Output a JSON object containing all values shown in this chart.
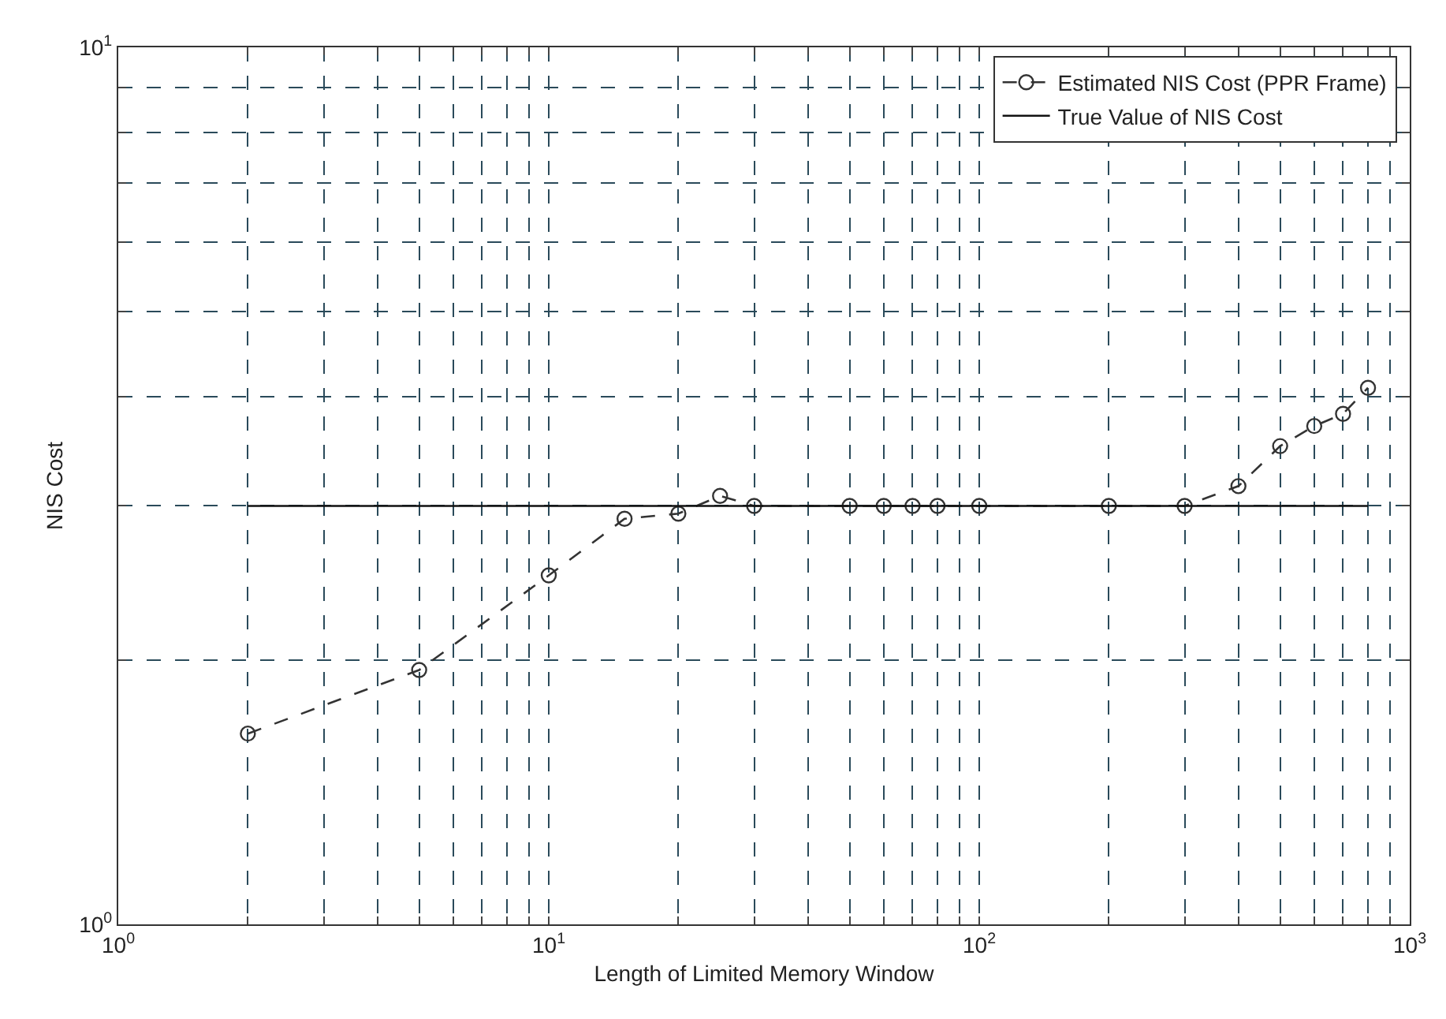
{
  "chart_data": {
    "type": "line",
    "xlabel": "Length of Limited Memory Window",
    "ylabel": "NIS Cost",
    "log": "xy",
    "grid": true,
    "legend": "top right",
    "xlim": [
      1,
      1000
    ],
    "ylim": [
      1,
      10
    ],
    "xticks": [
      {
        "value": 1,
        "label": "10$^{0}$"
      },
      {
        "value": 2,
        "label": null
      },
      {
        "value": 3,
        "label": null
      },
      {
        "value": 4,
        "label": null
      },
      {
        "value": 5,
        "label": null
      },
      {
        "value": 6,
        "label": null
      },
      {
        "value": 7,
        "label": null
      },
      {
        "value": 8,
        "label": null
      },
      {
        "value": 9,
        "label": null
      },
      {
        "value": 10,
        "label": "10$^{1}$"
      },
      {
        "value": 20,
        "label": null
      },
      {
        "value": 30,
        "label": null
      },
      {
        "value": 40,
        "label": null
      },
      {
        "value": 50,
        "label": null
      },
      {
        "value": 60,
        "label": null
      },
      {
        "value": 70,
        "label": null
      },
      {
        "value": 80,
        "label": null
      },
      {
        "value": 90,
        "label": null
      },
      {
        "value": 100,
        "label": "10$^{2}$"
      },
      {
        "value": 200,
        "label": null
      },
      {
        "value": 300,
        "label": null
      },
      {
        "value": 400,
        "label": null
      },
      {
        "value": 500,
        "label": null
      },
      {
        "value": 600,
        "label": null
      },
      {
        "value": 700,
        "label": null
      },
      {
        "value": 800,
        "label": null
      },
      {
        "value": 900,
        "label": null
      },
      {
        "value": 1000,
        "label": "10$^{3}$"
      }
    ],
    "yticks": [
      {
        "value": 1,
        "label": "10$^{0}$"
      },
      {
        "value": 2,
        "label": null
      },
      {
        "value": 3,
        "label": null
      },
      {
        "value": 4,
        "label": null
      },
      {
        "value": 5,
        "label": null
      },
      {
        "value": 6,
        "label": null
      },
      {
        "value": 7,
        "label": null
      },
      {
        "value": 8,
        "label": null
      },
      {
        "value": 9,
        "label": null
      },
      {
        "value": 10,
        "label": "10$^{1}$"
      }
    ],
    "series": [
      {
        "name": "Estimated NIS Cost (PPR Frame)",
        "color": "#333333",
        "type": "line",
        "line_style": "dashed",
        "marker": "circle",
        "x": [
          2,
          5,
          10,
          15,
          20,
          25,
          30,
          50,
          60,
          70,
          80,
          100,
          200,
          300,
          400,
          500,
          600,
          700,
          800
        ],
        "values": [
          1.65,
          1.95,
          2.5,
          2.9,
          2.94,
          3.08,
          3.0,
          3.0,
          3.0,
          3.0,
          3.0,
          3.0,
          3.0,
          3.0,
          3.16,
          3.51,
          3.7,
          3.82,
          4.09
        ]
      },
      {
        "name": "True Value of NIS Cost",
        "color": "#111111",
        "type": "line",
        "line_style": "solid",
        "marker": "none",
        "x": [
          2,
          800
        ],
        "values": [
          3,
          3
        ]
      }
    ]
  }
}
